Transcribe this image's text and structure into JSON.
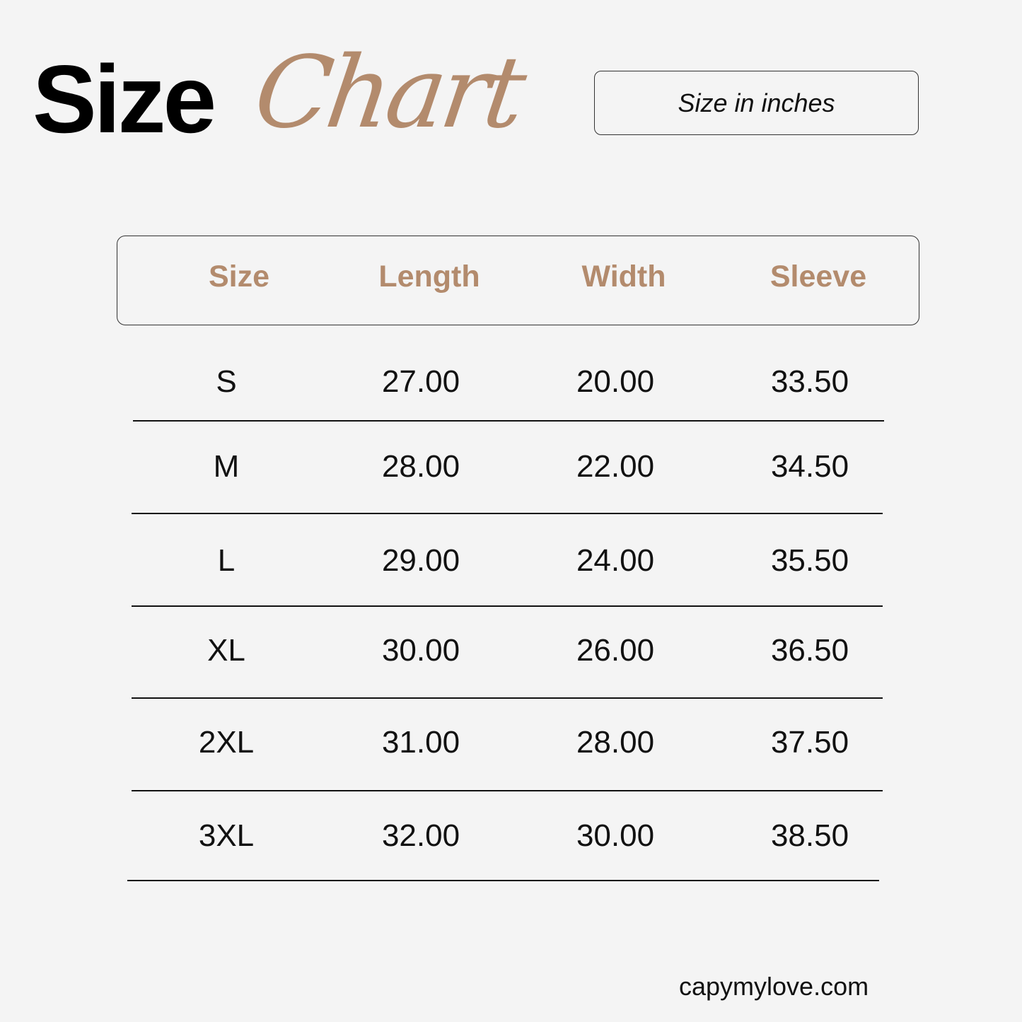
{
  "title": {
    "bold": "Size",
    "script": "Chart"
  },
  "units_label": "Size in inches",
  "brand_color": "#b38b6d",
  "table": {
    "columns": [
      "Size",
      "Length",
      "Width",
      "Sleeve"
    ],
    "rows": [
      [
        "S",
        "27.00",
        "20.00",
        "33.50"
      ],
      [
        "M",
        "28.00",
        "22.00",
        "34.50"
      ],
      [
        "L",
        "29.00",
        "24.00",
        "35.50"
      ],
      [
        "XL",
        "30.00",
        "26.00",
        "36.50"
      ],
      [
        "2XL",
        "31.00",
        "28.00",
        "37.50"
      ],
      [
        "3XL",
        "32.00",
        "30.00",
        "38.50"
      ]
    ]
  },
  "footer": "capymylove.com"
}
